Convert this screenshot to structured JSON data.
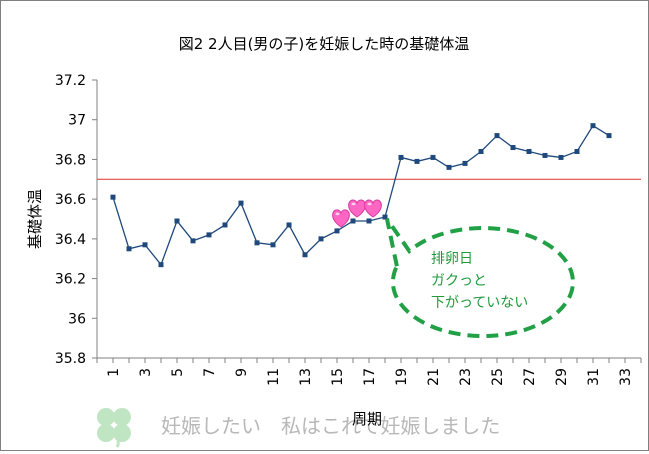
{
  "chart_data": {
    "type": "line",
    "title": "図2  2人目(男の子)を妊娠した時の基礎体温",
    "xlabel": "周期",
    "ylabel": "基礎体温",
    "ylim": [
      35.8,
      37.2
    ],
    "yticks": [
      "35.8",
      "36",
      "36.2",
      "36.4",
      "36.6",
      "36.8",
      "37",
      "37.2"
    ],
    "xlim": [
      0,
      34
    ],
    "xticks": [
      "1",
      "3",
      "5",
      "7",
      "9",
      "11",
      "13",
      "15",
      "17",
      "19",
      "21",
      "23",
      "25",
      "27",
      "29",
      "31",
      "33"
    ],
    "grid": false,
    "series": [
      {
        "x": [
          1,
          2,
          3,
          4,
          5,
          6,
          7,
          8,
          9,
          10,
          11,
          12,
          13,
          14,
          15,
          16,
          17,
          18,
          19,
          20,
          21,
          22,
          23,
          24,
          25,
          26,
          27,
          28,
          29,
          30,
          31,
          32
        ],
        "values": [
          36.61,
          36.35,
          36.37,
          36.27,
          36.49,
          36.39,
          36.42,
          36.47,
          36.58,
          36.38,
          36.37,
          36.47,
          36.32,
          36.4,
          36.44,
          36.49,
          36.49,
          36.51,
          36.81,
          36.79,
          36.81,
          36.76,
          36.78,
          36.84,
          36.92,
          36.86,
          36.84,
          36.82,
          36.81,
          36.84,
          36.97,
          36.92
        ],
        "color": "#1f497d"
      }
    ],
    "reference_line": {
      "y": 36.7,
      "color": "#e03030"
    },
    "hearts_at_x": [
      15,
      16,
      17
    ],
    "callout": {
      "lines": [
        "排卵日",
        "ガクっと",
        "下がっていない"
      ],
      "border_color": "#22a046",
      "text_color": "#1e9a3c",
      "points_to_x": 18
    }
  },
  "watermark": {
    "text": "妊娠したい　私はこれで妊娠しました",
    "icon": "clover-icon"
  }
}
